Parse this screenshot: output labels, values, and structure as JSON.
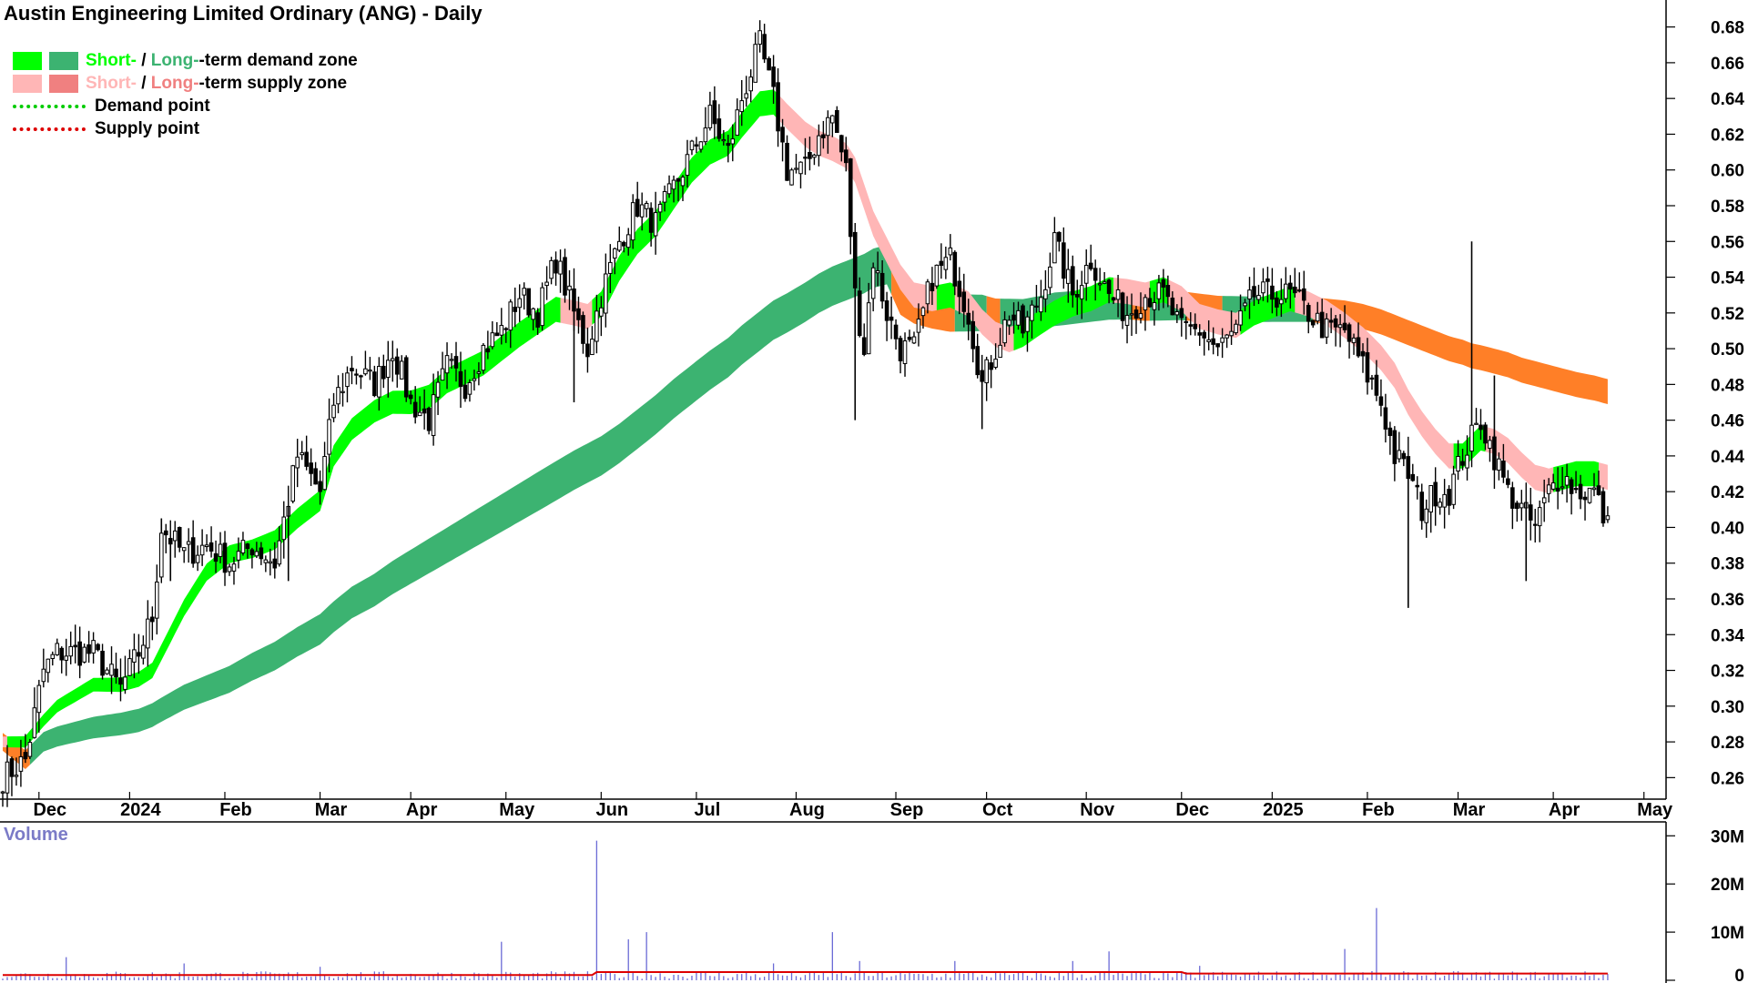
{
  "title": "Austin Engineering Limited Ordinary (ANG) - Daily",
  "legend": {
    "demand": {
      "short": "Short-",
      "sep": " / ",
      "long": "Long-",
      "rest": "-term demand zone",
      "short_color": "#00ff00",
      "long_color": "#3cb371"
    },
    "supply": {
      "short": "Short-",
      "sep": " / ",
      "long": "Long-",
      "rest": "-term supply zone",
      "short_color": "#ffb6b6",
      "long_color": "#f08080"
    },
    "demand_point": {
      "label": "Demand point",
      "color": "#00cc00"
    },
    "supply_point": {
      "label": "Supply point",
      "color": "#dd0000"
    }
  },
  "volume_label": "Volume",
  "chart_data": {
    "type": "candlestick",
    "x_axis": {
      "labels": [
        "Dec",
        "2024",
        "Feb",
        "Mar",
        "Apr",
        "May",
        "Jun",
        "Jul",
        "Aug",
        "Sep",
        "Oct",
        "Nov",
        "Dec",
        "2025",
        "Feb",
        "Mar",
        "Apr",
        "May"
      ],
      "day_index": [
        10,
        30,
        51,
        72,
        92,
        113,
        134,
        155,
        177,
        199,
        219,
        241,
        262,
        282,
        303,
        323,
        344,
        364
      ]
    },
    "price_axis": {
      "min": 0.25,
      "max": 0.69,
      "ticks": [
        "0.26",
        "0.28",
        "0.30",
        "0.32",
        "0.34",
        "0.36",
        "0.38",
        "0.40",
        "0.42",
        "0.44",
        "0.46",
        "0.48",
        "0.50",
        "0.52",
        "0.54",
        "0.56",
        "0.58",
        "0.60",
        "0.62",
        "0.64",
        "0.66",
        "0.68"
      ]
    },
    "volume_axis": {
      "max": 31000000,
      "ticks": [
        "0",
        "10M",
        "20M",
        "30M"
      ],
      "tick_values": [
        0,
        10000000,
        20000000,
        30000000
      ]
    },
    "anchors": [
      [
        0,
        0.26,
        0.28,
        0.28
      ],
      [
        5,
        0.27,
        0.28,
        0.27
      ],
      [
        9,
        0.32,
        0.292,
        0.28
      ],
      [
        12,
        0.33,
        0.3,
        0.283
      ],
      [
        20,
        0.33,
        0.312,
        0.288
      ],
      [
        26,
        0.31,
        0.312,
        0.29
      ],
      [
        30,
        0.33,
        0.315,
        0.292
      ],
      [
        33,
        0.35,
        0.32,
        0.295
      ],
      [
        35,
        0.4,
        0.33,
        0.298
      ],
      [
        40,
        0.385,
        0.355,
        0.305
      ],
      [
        45,
        0.39,
        0.375,
        0.31
      ],
      [
        50,
        0.38,
        0.385,
        0.315
      ],
      [
        55,
        0.39,
        0.388,
        0.322
      ],
      [
        60,
        0.38,
        0.393,
        0.328
      ],
      [
        65,
        0.44,
        0.405,
        0.336
      ],
      [
        70,
        0.42,
        0.415,
        0.343
      ],
      [
        73,
        0.47,
        0.44,
        0.35
      ],
      [
        77,
        0.49,
        0.455,
        0.358
      ],
      [
        82,
        0.48,
        0.465,
        0.365
      ],
      [
        86,
        0.5,
        0.47,
        0.372
      ],
      [
        90,
        0.47,
        0.47,
        0.378
      ],
      [
        94,
        0.46,
        0.473,
        0.384
      ],
      [
        98,
        0.49,
        0.482,
        0.39
      ],
      [
        102,
        0.48,
        0.487,
        0.396
      ],
      [
        106,
        0.5,
        0.492,
        0.402
      ],
      [
        110,
        0.51,
        0.5,
        0.408
      ],
      [
        114,
        0.53,
        0.508,
        0.414
      ],
      [
        118,
        0.52,
        0.515,
        0.42
      ],
      [
        122,
        0.55,
        0.522,
        0.426
      ],
      [
        126,
        0.52,
        0.52,
        0.432
      ],
      [
        129,
        0.5,
        0.518,
        0.436
      ],
      [
        132,
        0.53,
        0.525,
        0.44
      ],
      [
        136,
        0.56,
        0.545,
        0.447
      ],
      [
        140,
        0.58,
        0.56,
        0.455
      ],
      [
        144,
        0.57,
        0.57,
        0.463
      ],
      [
        148,
        0.59,
        0.585,
        0.472
      ],
      [
        152,
        0.61,
        0.6,
        0.48
      ],
      [
        156,
        0.63,
        0.61,
        0.488
      ],
      [
        160,
        0.61,
        0.615,
        0.495
      ],
      [
        163,
        0.64,
        0.625,
        0.502
      ],
      [
        167,
        0.67,
        0.637,
        0.51
      ],
      [
        170,
        0.64,
        0.638,
        0.516
      ],
      [
        173,
        0.6,
        0.63,
        0.52
      ],
      [
        177,
        0.6,
        0.62,
        0.526
      ],
      [
        180,
        0.62,
        0.615,
        0.531
      ],
      [
        183,
        0.63,
        0.612,
        0.535
      ],
      [
        186,
        0.6,
        0.608,
        0.538
      ],
      [
        188,
        0.53,
        0.6,
        0.54
      ],
      [
        190,
        0.5,
        0.585,
        0.542
      ],
      [
        192,
        0.55,
        0.57,
        0.545
      ],
      [
        195,
        0.52,
        0.555,
        0.547
      ],
      [
        198,
        0.5,
        0.54,
        0.53
      ],
      [
        201,
        0.5,
        0.53,
        0.525
      ],
      [
        205,
        0.54,
        0.528,
        0.522
      ],
      [
        209,
        0.55,
        0.53,
        0.52
      ],
      [
        213,
        0.52,
        0.525,
        0.52
      ],
      [
        216,
        0.48,
        0.515,
        0.52
      ],
      [
        219,
        0.5,
        0.508,
        0.518
      ],
      [
        222,
        0.52,
        0.505,
        0.518
      ],
      [
        225,
        0.51,
        0.508,
        0.518
      ],
      [
        229,
        0.53,
        0.515,
        0.52
      ],
      [
        232,
        0.56,
        0.52,
        0.522
      ],
      [
        236,
        0.53,
        0.525,
        0.523
      ],
      [
        240,
        0.55,
        0.528,
        0.524
      ],
      [
        244,
        0.53,
        0.533,
        0.525
      ],
      [
        248,
        0.52,
        0.532,
        0.525
      ],
      [
        252,
        0.53,
        0.53,
        0.524
      ],
      [
        256,
        0.53,
        0.533,
        0.524
      ],
      [
        260,
        0.51,
        0.528,
        0.524
      ],
      [
        264,
        0.51,
        0.518,
        0.523
      ],
      [
        268,
        0.5,
        0.515,
        0.522
      ],
      [
        272,
        0.51,
        0.513,
        0.522
      ],
      [
        276,
        0.53,
        0.52,
        0.522
      ],
      [
        280,
        0.53,
        0.524,
        0.522
      ],
      [
        284,
        0.53,
        0.528,
        0.522
      ],
      [
        288,
        0.52,
        0.525,
        0.522
      ],
      [
        292,
        0.51,
        0.52,
        0.521
      ],
      [
        296,
        0.51,
        0.513,
        0.52
      ],
      [
        300,
        0.49,
        0.505,
        0.518
      ],
      [
        304,
        0.47,
        0.495,
        0.515
      ],
      [
        307,
        0.44,
        0.485,
        0.512
      ],
      [
        310,
        0.43,
        0.47,
        0.509
      ],
      [
        313,
        0.41,
        0.458,
        0.506
      ],
      [
        316,
        0.42,
        0.448,
        0.503
      ],
      [
        319,
        0.42,
        0.44,
        0.5
      ],
      [
        322,
        0.44,
        0.44,
        0.498
      ],
      [
        324,
        0.45,
        0.445,
        0.496
      ],
      [
        326,
        0.46,
        0.45,
        0.495
      ],
      [
        329,
        0.44,
        0.448,
        0.493
      ],
      [
        332,
        0.42,
        0.443,
        0.491
      ],
      [
        335,
        0.41,
        0.435,
        0.488
      ],
      [
        338,
        0.4,
        0.428,
        0.486
      ],
      [
        341,
        0.42,
        0.426,
        0.484
      ],
      [
        344,
        0.43,
        0.428,
        0.482
      ],
      [
        347,
        0.42,
        0.43,
        0.48
      ],
      [
        351,
        0.42,
        0.43,
        0.478
      ],
      [
        354,
        0.4,
        0.428,
        0.476
      ]
    ],
    "spikes": [
      [
        35,
        0.405
      ],
      [
        37,
        0.37
      ],
      [
        63,
        0.37
      ],
      [
        126,
        0.47
      ],
      [
        188,
        0.46
      ],
      [
        216,
        0.455
      ],
      [
        310,
        0.355
      ],
      [
        324,
        0.56
      ],
      [
        329,
        0.485
      ],
      [
        336,
        0.37
      ]
    ],
    "volume_spikes": [
      [
        14,
        4800000
      ],
      [
        40,
        3500000
      ],
      [
        70,
        2800000
      ],
      [
        110,
        8000000
      ],
      [
        131,
        29000000
      ],
      [
        138,
        8500000
      ],
      [
        142,
        10000000
      ],
      [
        170,
        3500000
      ],
      [
        183,
        10000000
      ],
      [
        189,
        4000000
      ],
      [
        210,
        4000000
      ],
      [
        236,
        4000000
      ],
      [
        244,
        6000000
      ],
      [
        264,
        3000000
      ],
      [
        296,
        6500000
      ],
      [
        303,
        15000000
      ]
    ]
  }
}
